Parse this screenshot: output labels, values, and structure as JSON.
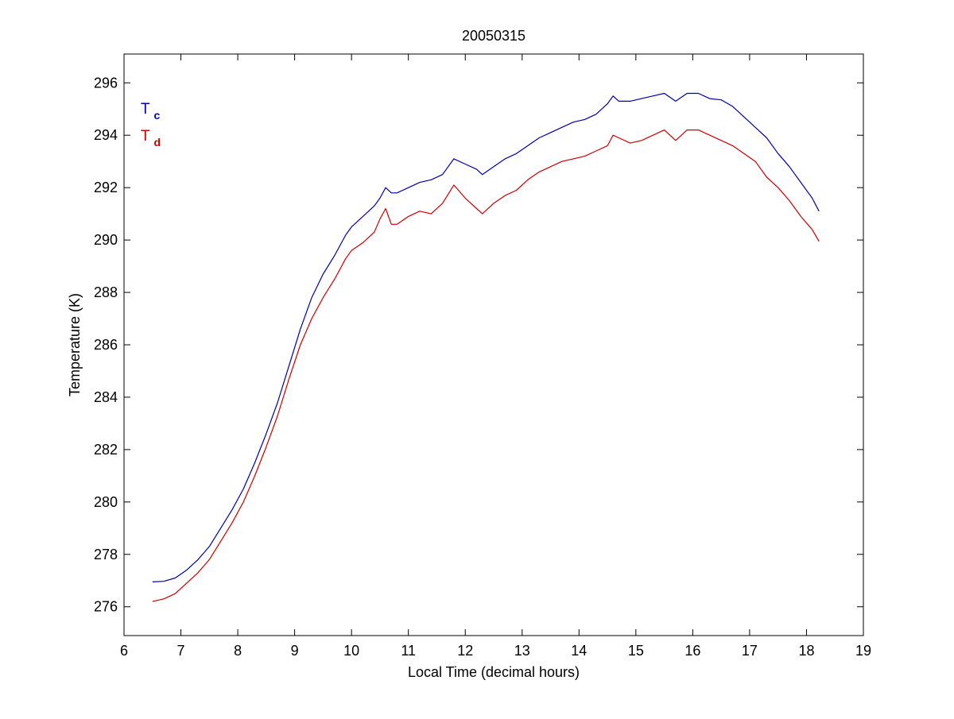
{
  "chart_data": {
    "type": "line",
    "title": "20050315",
    "xlabel": "Local Time (decimal hours)",
    "ylabel": "Temperature (K)",
    "xlim": [
      6,
      19
    ],
    "ylim": [
      274.9,
      297.1
    ],
    "xticks": [
      6,
      7,
      8,
      9,
      10,
      11,
      12,
      13,
      14,
      15,
      16,
      17,
      18,
      19
    ],
    "yticks": [
      276,
      278,
      280,
      282,
      284,
      286,
      288,
      290,
      292,
      294,
      296
    ],
    "grid": false,
    "legend_position": "top-left",
    "legend": [
      {
        "main": "T",
        "sub": "c",
        "color": "#0000aa"
      },
      {
        "main": "T",
        "sub": "d",
        "color": "#cc0000"
      }
    ],
    "series": [
      {
        "name": "Tc",
        "color": "#0000aa",
        "x": [
          6.5,
          6.7,
          6.9,
          7.1,
          7.3,
          7.5,
          7.7,
          7.9,
          8.1,
          8.3,
          8.5,
          8.7,
          8.9,
          9.1,
          9.3,
          9.5,
          9.7,
          9.9,
          10.0,
          10.2,
          10.4,
          10.5,
          10.6,
          10.7,
          10.8,
          11.0,
          11.2,
          11.4,
          11.6,
          11.8,
          12.0,
          12.2,
          12.3,
          12.5,
          12.7,
          12.9,
          13.1,
          13.3,
          13.5,
          13.7,
          13.9,
          14.1,
          14.3,
          14.5,
          14.6,
          14.7,
          14.9,
          15.1,
          15.3,
          15.5,
          15.7,
          15.9,
          16.1,
          16.3,
          16.5,
          16.7,
          16.9,
          17.1,
          17.3,
          17.5,
          17.7,
          17.9,
          18.1,
          18.22
        ],
        "y": [
          276.95,
          276.97,
          277.1,
          277.4,
          277.8,
          278.3,
          279.0,
          279.7,
          280.5,
          281.5,
          282.6,
          283.8,
          285.2,
          286.6,
          287.8,
          288.7,
          289.4,
          290.2,
          290.5,
          290.9,
          291.3,
          291.6,
          292.0,
          291.8,
          291.8,
          292.0,
          292.2,
          292.3,
          292.5,
          293.1,
          292.9,
          292.7,
          292.5,
          292.8,
          293.1,
          293.3,
          293.6,
          293.9,
          294.1,
          294.3,
          294.5,
          294.6,
          294.8,
          295.2,
          295.5,
          295.3,
          295.3,
          295.4,
          295.5,
          295.6,
          295.3,
          295.6,
          295.6,
          295.4,
          295.35,
          295.1,
          294.7,
          294.3,
          293.9,
          293.3,
          292.8,
          292.2,
          291.6,
          291.1
        ]
      },
      {
        "name": "Td",
        "color": "#cc0000",
        "x": [
          6.5,
          6.7,
          6.9,
          7.1,
          7.3,
          7.5,
          7.7,
          7.9,
          8.1,
          8.3,
          8.5,
          8.7,
          8.9,
          9.1,
          9.3,
          9.5,
          9.7,
          9.9,
          10.0,
          10.2,
          10.4,
          10.5,
          10.6,
          10.7,
          10.8,
          11.0,
          11.2,
          11.4,
          11.6,
          11.8,
          12.0,
          12.2,
          12.3,
          12.5,
          12.7,
          12.9,
          13.1,
          13.3,
          13.5,
          13.7,
          13.9,
          14.1,
          14.3,
          14.5,
          14.6,
          14.7,
          14.9,
          15.1,
          15.3,
          15.5,
          15.7,
          15.9,
          16.1,
          16.3,
          16.5,
          16.7,
          16.9,
          17.1,
          17.3,
          17.5,
          17.7,
          17.9,
          18.1,
          18.22
        ],
        "y": [
          276.2,
          276.3,
          276.5,
          276.9,
          277.3,
          277.8,
          278.5,
          279.2,
          280.0,
          281.0,
          282.1,
          283.3,
          284.7,
          286.0,
          287.0,
          287.8,
          288.5,
          289.3,
          289.6,
          289.9,
          290.3,
          290.8,
          291.2,
          290.6,
          290.6,
          290.9,
          291.1,
          291.0,
          291.4,
          292.1,
          291.6,
          291.2,
          291.0,
          291.4,
          291.7,
          291.9,
          292.3,
          292.6,
          292.8,
          293.0,
          293.1,
          293.2,
          293.4,
          293.6,
          294.0,
          293.9,
          293.7,
          293.8,
          294.0,
          294.2,
          293.8,
          294.2,
          294.2,
          294.0,
          293.8,
          293.6,
          293.3,
          293.0,
          292.4,
          292.0,
          291.5,
          290.9,
          290.4,
          289.95
        ]
      }
    ]
  }
}
